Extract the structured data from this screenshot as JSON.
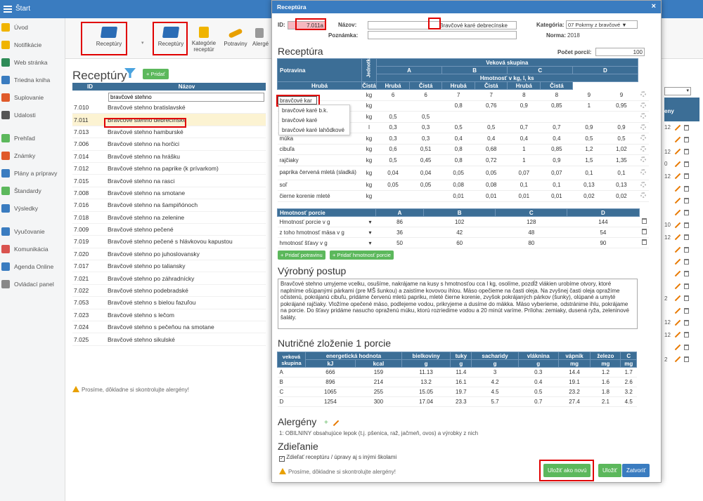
{
  "topbar": {
    "title": "Štart"
  },
  "sidebar": {
    "items": [
      {
        "label": "Úvod",
        "color": "#f0b400"
      },
      {
        "label": "Notifikácie",
        "color": "#f0b400"
      },
      {
        "label": "Web stránka",
        "color": "#2e8b57"
      },
      {
        "label": "Triedna kniha",
        "color": "#3a7cc0"
      },
      {
        "label": "Suplovanie",
        "color": "#e05a2b"
      },
      {
        "label": "Udalosti",
        "color": "#555555"
      },
      {
        "label": "Prehľad",
        "color": "#5cb85c"
      },
      {
        "label": "Známky",
        "color": "#e05a2b"
      },
      {
        "label": "Plány a prípravy",
        "color": "#3a7cc0"
      },
      {
        "label": "Štandardy",
        "color": "#5cb85c"
      },
      {
        "label": "Výsledky",
        "color": "#3a7cc0"
      },
      {
        "label": "Vyučovanie",
        "color": "#3a7cc0"
      },
      {
        "label": "Komunikácia",
        "color": "#d9534f"
      },
      {
        "label": "Agenda Online",
        "color": "#3a7cc0"
      },
      {
        "label": "Ovládací panel",
        "color": "#888888"
      }
    ]
  },
  "toolbar": {
    "receptury_big": "Receptúry",
    "receptury_small": "Receptúry",
    "kategorie": "Kategórie receptúr",
    "potraviny": "Potraviny",
    "alergeny": "Alergé"
  },
  "list": {
    "title": "Receptúry",
    "add": "+ Pridať",
    "col_id": "ID",
    "col_name": "Názov",
    "filter": "bravčové stehno",
    "rows": [
      {
        "id": "7.010",
        "name": "Bravčové stehno bratislavské"
      },
      {
        "id": "7.011",
        "name": "Bravčové stehno debrecínske"
      },
      {
        "id": "7.013",
        "name": "Bravčové stehno hamburské"
      },
      {
        "id": "7.006",
        "name": "Bravčové stehno na horčici"
      },
      {
        "id": "7.014",
        "name": "Bravčové stehno na hrášku"
      },
      {
        "id": "7.012",
        "name": "Bravčové stehno na paprike (k prívarkom)"
      },
      {
        "id": "7.015",
        "name": "Bravčové stehno na rasci"
      },
      {
        "id": "7.008",
        "name": "Bravčové stehno na smotane"
      },
      {
        "id": "7.016",
        "name": "Bravčové stehno na šampiňónoch"
      },
      {
        "id": "7.018",
        "name": "Bravčové stehno na zelenine"
      },
      {
        "id": "7.009",
        "name": "Bravčové stehno pečené"
      },
      {
        "id": "7.019",
        "name": "Bravčové stehno pečené s hlávkovou kapustou"
      },
      {
        "id": "7.020",
        "name": "Bravčové stehno po juhoslovansky"
      },
      {
        "id": "7.017",
        "name": "Bravčové stehno po taliansky"
      },
      {
        "id": "7.021",
        "name": "Bravčové stehno po záhradnícky"
      },
      {
        "id": "7.022",
        "name": "Bravčové stehno podebradské"
      },
      {
        "id": "7.053",
        "name": "Bravčové stehno s bielou fazuľou"
      },
      {
        "id": "7.023",
        "name": "Bravčové stehno s lečom"
      },
      {
        "id": "7.024",
        "name": "Bravčové stehno s pečeňou na smotane"
      },
      {
        "id": "7.025",
        "name": "Bravčové stehno sikulské"
      }
    ],
    "warning": "Prosíme, dôkladne si skontrolujte alergény!",
    "right_head": "eny",
    "right_nums": [
      "",
      "12",
      "",
      "12",
      "0",
      "12",
      "",
      "",
      "",
      "10",
      "12",
      "",
      "",
      "",
      "",
      "2",
      "",
      "12",
      "12",
      "",
      "2"
    ]
  },
  "modal": {
    "title": "Receptúra",
    "close": "×",
    "id_label": "ID:",
    "id_value": "7.011a",
    "name_label": "Názov:",
    "name_value": "Bravčové karé debrecínske",
    "note_label": "Poznámka:",
    "cat_label": "Kategória:",
    "cat_value": "07 Pokrmy z bravčové ▼",
    "norm_label": "Norma:",
    "norm_value": "2018",
    "section_receptura": "Receptúra",
    "portions_label": "Počet porcií:",
    "portions_value": "100",
    "th_potravina": "Potravina",
    "th_jednotka": "Jednotka",
    "th_veková": "Veková skupina",
    "groups": [
      "A",
      "B",
      "C",
      "D"
    ],
    "th_hmotnost": "Hmotnosť v kg, l, ks",
    "th_hruba": "Hrubá",
    "th_cista": "Čistá",
    "ingredients": [
      {
        "name": "bravčové kar",
        "unit": "kg",
        "v": [
          "6",
          "6",
          "7",
          "7",
          "8",
          "8",
          "9",
          "9"
        ]
      },
      {
        "name": "",
        "unit": "kg",
        "v": [
          "",
          "",
          "0,8",
          "0,76",
          "0,9",
          "0,85",
          "1",
          "0,95"
        ]
      },
      {
        "name": "",
        "unit": "kg",
        "v": [
          "0,5",
          "0,5",
          "",
          "",
          "",
          "",
          "",
          ""
        ]
      },
      {
        "name": "",
        "unit": "l",
        "v": [
          "0,3",
          "0,3",
          "0,5",
          "0,5",
          "0,7",
          "0,7",
          "0,9",
          "0,9"
        ]
      },
      {
        "name": "múka",
        "unit": "kg",
        "v": [
          "0,3",
          "0,3",
          "0,4",
          "0,4",
          "0,4",
          "0,4",
          "0,5",
          "0,5"
        ]
      },
      {
        "name": "cibuľa",
        "unit": "kg",
        "v": [
          "0,6",
          "0,51",
          "0,8",
          "0,68",
          "1",
          "0,85",
          "1,2",
          "1,02"
        ]
      },
      {
        "name": "rajčiaky",
        "unit": "kg",
        "v": [
          "0,5",
          "0,45",
          "0,8",
          "0,72",
          "1",
          "0,9",
          "1,5",
          "1,35"
        ]
      },
      {
        "name": "paprika červená mletá (sladká)",
        "unit": "kg",
        "v": [
          "0,04",
          "0,04",
          "0,05",
          "0,05",
          "0,07",
          "0,07",
          "0,1",
          "0,1"
        ]
      },
      {
        "name": "soľ",
        "unit": "kg",
        "v": [
          "0,05",
          "0,05",
          "0,08",
          "0,08",
          "0,1",
          "0,1",
          "0,13",
          "0,13"
        ]
      },
      {
        "name": "čierne korenie mleté",
        "unit": "kg",
        "v": [
          "",
          "",
          "0,01",
          "0,01",
          "0,01",
          "0,01",
          "0,02",
          "0,02"
        ]
      }
    ],
    "autocomplete": [
      "bravčové karé b.k.",
      "bravčové karé",
      "bravčové karé lahôdkové"
    ],
    "portion_head": "Hmotnosť porcie",
    "portion_rows": [
      {
        "label": "Hmotnosť porcie v g",
        "v": [
          "86",
          "102",
          "128",
          "144"
        ]
      },
      {
        "label": "z toho hmotnosť mäsa v g",
        "v": [
          "36",
          "42",
          "48",
          "54"
        ]
      },
      {
        "label": "hmotnosť šťavy v g",
        "v": [
          "50",
          "60",
          "80",
          "90"
        ]
      }
    ],
    "add_food": "+ Pridať potravinu",
    "add_weight": "+ Pridať hmotnosť porcie",
    "section_postup": "Výrobný postup",
    "postup_text": "Bravčové stehno umyjeme vcelku, osušíme, nakrájame na kusy s hmotnosťou cca l kg, osolíme, pozdĺž vlákien urobíme otvory, ktoré naplníme ošúpanými párkami (pre MŠ šunkou) a zaistíme kovovou ihlou. Mäso opečieme na časti oleja. Na zvyšnej časti oleja opražíme očistenú, pokrájanú cibuľu, pridáme červenú mletú papriku, mleté čierne korenie, zvyšok pokrájaných párkov (šunky), olúpané a umyté pokrájané rajčiaky. Vložíme opečené mäso, podlejeme vodou, prikryjeme a dusíme do mäkka. Mäso vyberieme, odstránime ihlu, pokrájame na porcie. Do šťavy pridáme nasucho opraženú múku, ktorú rozriedime vodou a 20 minút varíme. Príloha: zemiaky, dusená ryža, zeleninové šaláty.",
    "section_nutr": "Nutričné zloženie 1 porcie",
    "nutr_headers": [
      "veková skupina",
      "energetická hodnota",
      "bielkoviny",
      "tuky",
      "sacharidy",
      "vláknina",
      "vápnik",
      "železo",
      "C"
    ],
    "nutr_units": [
      "kJ",
      "kcal",
      "g",
      "g",
      "g",
      "g",
      "mg",
      "mg",
      "mg"
    ],
    "nutr_rows": [
      [
        "A",
        "666",
        "159",
        "11.13",
        "11.4",
        "3",
        "0.3",
        "14.4",
        "1.2",
        "1.7"
      ],
      [
        "B",
        "896",
        "214",
        "13.2",
        "16.1",
        "4.2",
        "0.4",
        "19.1",
        "1.6",
        "2.6"
      ],
      [
        "C",
        "1065",
        "255",
        "15.05",
        "19.7",
        "4.5",
        "0.5",
        "23.2",
        "1.8",
        "3.2"
      ],
      [
        "D",
        "1254",
        "300",
        "17.04",
        "23.3",
        "5.7",
        "0.7",
        "27.4",
        "2.1",
        "4.5"
      ]
    ],
    "section_alerg": "Alergény",
    "alerg_text": "1: OBILNINY obsahujúce lepok (t.j. pšenica, raž, jačmeň, ovos) a výrobky z nich",
    "section_share": "Zdieľanie",
    "share_text": "Zdieľať receptúru / úpravy aj s inými školami",
    "warning": "Prosíme, dôkladne si skontrolujte alergény!",
    "btn_save_new": "Uložiť ako novú",
    "btn_save": "Uložiť",
    "btn_close": "Zatvoriť"
  }
}
